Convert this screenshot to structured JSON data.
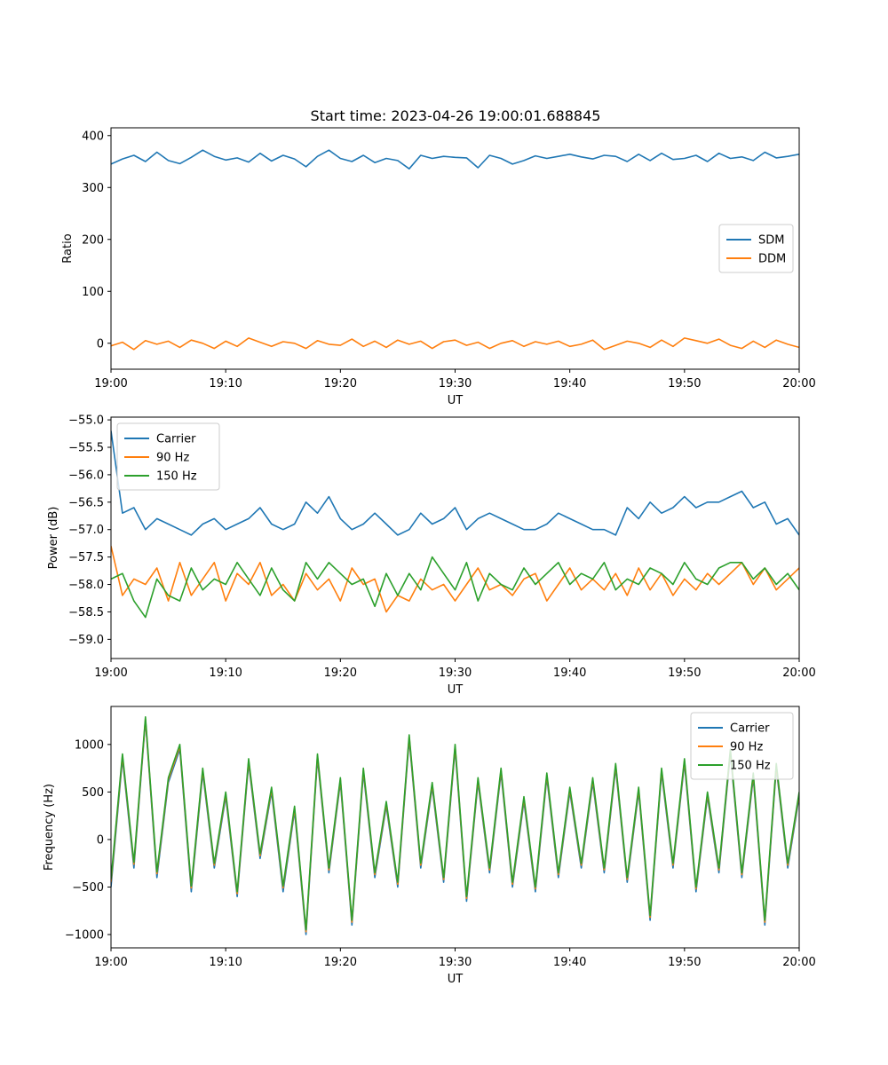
{
  "title": "Start time: 2023-04-26 19:00:01.688845",
  "chart_data": [
    {
      "type": "line",
      "xlabel": "UT",
      "ylabel": "Ratio",
      "xlim": [
        "19:00",
        "20:00"
      ],
      "x_ticks": [
        "19:00",
        "19:10",
        "19:20",
        "19:30",
        "19:40",
        "19:50",
        "20:00"
      ],
      "ylim": [
        -50,
        415
      ],
      "y_ticks": [
        0,
        100,
        200,
        300,
        400
      ],
      "y_tick_labels": [
        "0",
        "100",
        "200",
        "300",
        "400"
      ],
      "legend": "center right",
      "x_minutes": [
        0,
        1,
        2,
        3,
        4,
        5,
        6,
        7,
        8,
        9,
        10,
        11,
        12,
        13,
        14,
        15,
        16,
        17,
        18,
        19,
        20,
        21,
        22,
        23,
        24,
        25,
        26,
        27,
        28,
        29,
        30,
        31,
        32,
        33,
        34,
        35,
        36,
        37,
        38,
        39,
        40,
        41,
        42,
        43,
        44,
        45,
        46,
        47,
        48,
        49,
        50,
        51,
        52,
        53,
        54,
        55,
        56,
        57,
        58,
        59,
        60
      ],
      "series": [
        {
          "name": "SDM",
          "color": "#1f77b4",
          "values": [
            345,
            355,
            362,
            350,
            368,
            352,
            346,
            358,
            372,
            360,
            353,
            357,
            349,
            366,
            351,
            362,
            355,
            340,
            360,
            372,
            356,
            350,
            362,
            348,
            356,
            352,
            336,
            362,
            356,
            360,
            358,
            357,
            338,
            362,
            356,
            345,
            352,
            361,
            356,
            360,
            364,
            359,
            355,
            362,
            360,
            350,
            364,
            352,
            366,
            354,
            356,
            362,
            350,
            366,
            356,
            359,
            352,
            368,
            357,
            360,
            364
          ]
        },
        {
          "name": "DDM",
          "color": "#ff7f0e",
          "values": [
            -5,
            2,
            -12,
            5,
            -2,
            4,
            -8,
            6,
            0,
            -10,
            4,
            -6,
            10,
            2,
            -6,
            3,
            0,
            -10,
            5,
            -2,
            -4,
            8,
            -6,
            4,
            -8,
            6,
            -2,
            4,
            -10,
            3,
            6,
            -4,
            2,
            -10,
            0,
            5,
            -6,
            3,
            -2,
            4,
            -6,
            -2,
            6,
            -12,
            -4,
            4,
            0,
            -8,
            6,
            -6,
            10,
            5,
            0,
            8,
            -4,
            -10,
            4,
            -8,
            6,
            -2,
            -8
          ]
        }
      ]
    },
    {
      "type": "line",
      "xlabel": "UT",
      "ylabel": "Power (dB)",
      "xlim": [
        "19:00",
        "20:00"
      ],
      "x_ticks": [
        "19:00",
        "19:10",
        "19:20",
        "19:30",
        "19:40",
        "19:50",
        "20:00"
      ],
      "ylim": [
        -59.35,
        -54.95
      ],
      "y_ticks": [
        -59.0,
        -58.5,
        -58.0,
        -57.5,
        -57.0,
        -56.5,
        -56.0,
        -55.5,
        -55.0
      ],
      "y_tick_labels": [
        "−59.0",
        "−58.5",
        "−58.0",
        "−57.5",
        "−57.0",
        "−56.5",
        "−56.0",
        "−55.5",
        "−55.0"
      ],
      "legend": "upper left",
      "x_minutes": [
        0,
        1,
        2,
        3,
        4,
        5,
        6,
        7,
        8,
        9,
        10,
        11,
        12,
        13,
        14,
        15,
        16,
        17,
        18,
        19,
        20,
        21,
        22,
        23,
        24,
        25,
        26,
        27,
        28,
        29,
        30,
        31,
        32,
        33,
        34,
        35,
        36,
        37,
        38,
        39,
        40,
        41,
        42,
        43,
        44,
        45,
        46,
        47,
        48,
        49,
        50,
        51,
        52,
        53,
        54,
        55,
        56,
        57,
        58,
        59,
        60
      ],
      "series": [
        {
          "name": "Carrier",
          "color": "#1f77b4",
          "values": [
            -55.2,
            -56.7,
            -56.6,
            -57.0,
            -56.8,
            -56.9,
            -57.0,
            -57.1,
            -56.9,
            -56.8,
            -57.0,
            -56.9,
            -56.8,
            -56.6,
            -56.9,
            -57.0,
            -56.9,
            -56.5,
            -56.7,
            -56.4,
            -56.8,
            -57.0,
            -56.9,
            -56.7,
            -56.9,
            -57.1,
            -57.0,
            -56.7,
            -56.9,
            -56.8,
            -56.6,
            -57.0,
            -56.8,
            -56.7,
            -56.8,
            -56.9,
            -57.0,
            -57.0,
            -56.9,
            -56.7,
            -56.8,
            -56.9,
            -57.0,
            -57.0,
            -57.1,
            -56.6,
            -56.8,
            -56.5,
            -56.7,
            -56.6,
            -56.4,
            -56.6,
            -56.5,
            -56.5,
            -56.4,
            -56.3,
            -56.6,
            -56.5,
            -56.9,
            -56.8,
            -57.1
          ]
        },
        {
          "name": "90 Hz",
          "color": "#ff7f0e",
          "values": [
            -57.3,
            -58.2,
            -57.9,
            -58.0,
            -57.7,
            -58.3,
            -57.6,
            -58.2,
            -57.9,
            -57.6,
            -58.3,
            -57.8,
            -58.0,
            -57.6,
            -58.2,
            -58.0,
            -58.3,
            -57.8,
            -58.1,
            -57.9,
            -58.3,
            -57.7,
            -58.0,
            -57.9,
            -58.5,
            -58.2,
            -58.3,
            -57.9,
            -58.1,
            -58.0,
            -58.3,
            -58.0,
            -57.7,
            -58.1,
            -58.0,
            -58.2,
            -57.9,
            -57.8,
            -58.3,
            -58.0,
            -57.7,
            -58.1,
            -57.9,
            -58.1,
            -57.8,
            -58.2,
            -57.7,
            -58.1,
            -57.8,
            -58.2,
            -57.9,
            -58.1,
            -57.8,
            -58.0,
            -57.8,
            -57.6,
            -58.0,
            -57.7,
            -58.1,
            -57.9,
            -57.7
          ]
        },
        {
          "name": "150 Hz",
          "color": "#2ca02c",
          "values": [
            -57.9,
            -57.8,
            -58.3,
            -58.6,
            -57.9,
            -58.2,
            -58.3,
            -57.7,
            -58.1,
            -57.9,
            -58.0,
            -57.6,
            -57.9,
            -58.2,
            -57.7,
            -58.1,
            -58.3,
            -57.6,
            -57.9,
            -57.6,
            -57.8,
            -58.0,
            -57.9,
            -58.4,
            -57.8,
            -58.2,
            -57.8,
            -58.1,
            -57.5,
            -57.8,
            -58.1,
            -57.6,
            -58.3,
            -57.8,
            -58.0,
            -58.1,
            -57.7,
            -58.0,
            -57.8,
            -57.6,
            -58.0,
            -57.8,
            -57.9,
            -57.6,
            -58.1,
            -57.9,
            -58.0,
            -57.7,
            -57.8,
            -58.0,
            -57.6,
            -57.9,
            -58.0,
            -57.7,
            -57.6,
            -57.6,
            -57.9,
            -57.7,
            -58.0,
            -57.8,
            -58.1
          ]
        }
      ]
    },
    {
      "type": "line",
      "xlabel": "UT",
      "ylabel": "Frequency (Hz)",
      "xlim": [
        "19:00",
        "20:00"
      ],
      "x_ticks": [
        "19:00",
        "19:10",
        "19:20",
        "19:30",
        "19:40",
        "19:50",
        "20:00"
      ],
      "ylim": [
        -1140,
        1400
      ],
      "y_ticks": [
        -1000,
        -500,
        0,
        500,
        1000
      ],
      "y_tick_labels": [
        "−1000",
        "−500",
        "0",
        "500",
        "1000"
      ],
      "legend": "upper right",
      "x_minutes": [
        0,
        1,
        2,
        3,
        4,
        5,
        6,
        7,
        8,
        9,
        10,
        11,
        12,
        13,
        14,
        15,
        16,
        17,
        18,
        19,
        20,
        21,
        22,
        23,
        24,
        25,
        26,
        27,
        28,
        29,
        30,
        31,
        32,
        33,
        34,
        35,
        36,
        37,
        38,
        39,
        40,
        41,
        42,
        43,
        44,
        45,
        46,
        47,
        48,
        49,
        50,
        51,
        52,
        53,
        54,
        55,
        56,
        57,
        58,
        59,
        60
      ],
      "series": [
        {
          "name": "Carrier",
          "color": "#1f77b4",
          "values": [
            -500,
            850,
            -300,
            1250,
            -400,
            600,
            950,
            -550,
            700,
            -300,
            450,
            -600,
            800,
            -200,
            500,
            -550,
            300,
            -1000,
            850,
            -350,
            600,
            -900,
            700,
            -400,
            350,
            -500,
            1050,
            -300,
            550,
            -450,
            950,
            -650,
            600,
            -350,
            700,
            -500,
            400,
            -550,
            650,
            -400,
            500,
            -300,
            600,
            -350,
            750,
            -450,
            500,
            -850,
            700,
            -300,
            800,
            -550,
            450,
            -350,
            900,
            -400,
            650,
            -900,
            750,
            -300,
            450
          ]
        },
        {
          "name": "90 Hz",
          "color": "#ff7f0e",
          "values": [
            -450,
            880,
            -260,
            1270,
            -360,
            630,
            980,
            -510,
            730,
            -270,
            480,
            -570,
            830,
            -170,
            530,
            -510,
            330,
            -970,
            880,
            -320,
            630,
            -870,
            730,
            -370,
            380,
            -470,
            1080,
            -270,
            580,
            -420,
            980,
            -620,
            630,
            -320,
            730,
            -470,
            430,
            -520,
            680,
            -370,
            530,
            -270,
            630,
            -320,
            780,
            -420,
            530,
            -820,
            730,
            -270,
            830,
            -520,
            480,
            -320,
            930,
            -370,
            680,
            -870,
            780,
            -270,
            480
          ]
        },
        {
          "name": "150 Hz",
          "color": "#2ca02c",
          "values": [
            -420,
            900,
            -240,
            1290,
            -340,
            650,
            1000,
            -490,
            750,
            -250,
            500,
            -550,
            850,
            -150,
            550,
            -490,
            350,
            -950,
            900,
            -300,
            650,
            -850,
            750,
            -350,
            400,
            -450,
            1100,
            -250,
            600,
            -400,
            1000,
            -600,
            650,
            -300,
            750,
            -450,
            450,
            -500,
            700,
            -350,
            550,
            -250,
            650,
            -300,
            800,
            -400,
            550,
            -800,
            750,
            -250,
            850,
            -500,
            500,
            -300,
            950,
            -350,
            700,
            -850,
            800,
            -250,
            500
          ]
        }
      ]
    }
  ]
}
